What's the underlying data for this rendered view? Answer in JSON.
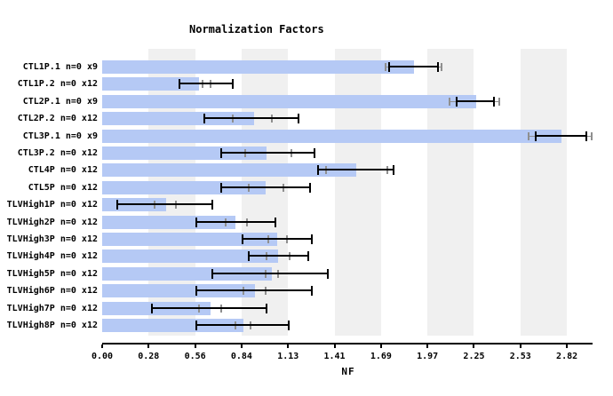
{
  "chart_data": {
    "type": "bar",
    "orientation": "horizontal",
    "title": "Normalization Factors",
    "xlabel": "NF",
    "xlim": [
      0,
      2.82
    ],
    "xtick_labels": [
      "0.00",
      "0.28",
      "0.56",
      "0.84",
      "1.13",
      "1.41",
      "1.69",
      "1.97",
      "2.25",
      "2.53",
      "2.82"
    ],
    "grid": "alternating vertical gray bands between every other tick",
    "legend": null,
    "bar_color": "#b5c9f5",
    "band_color": "#f0f0f0",
    "error_bar_color": "#000000",
    "secondary_whisker_color": "#8f8f8f",
    "rows": [
      {
        "label": "CTL1P.1 n=0 x9",
        "value": 1.89,
        "error_low": 1.74,
        "error_high": 2.04,
        "gray_low": 1.72,
        "gray_high": 2.06
      },
      {
        "label": "CTL1P.2 n=0 x12",
        "value": 0.59,
        "error_low": 0.47,
        "error_high": 0.79,
        "gray_low": 0.61,
        "gray_high": 0.66
      },
      {
        "label": "CTL2P.1 n=0 x9",
        "value": 2.27,
        "error_low": 2.15,
        "error_high": 2.38,
        "gray_low": 2.11,
        "gray_high": 2.41
      },
      {
        "label": "CTL2P.2 n=0 x12",
        "value": 0.92,
        "error_low": 0.62,
        "error_high": 1.19,
        "gray_low": 0.79,
        "gray_high": 1.03
      },
      {
        "label": "CTL3P.1 n=0 x9",
        "value": 2.79,
        "error_low": 2.63,
        "error_high": 2.94,
        "gray_low": 2.59,
        "gray_high": 2.97
      },
      {
        "label": "CTL3P.2 n=0 x12",
        "value": 1.0,
        "error_low": 0.72,
        "error_high": 1.29,
        "gray_low": 0.87,
        "gray_high": 1.15
      },
      {
        "label": "CTL4P n=0 x12",
        "value": 1.54,
        "error_low": 1.31,
        "error_high": 1.77,
        "gray_low": 1.36,
        "gray_high": 1.73
      },
      {
        "label": "CTL5P n=0 x12",
        "value": 0.99,
        "error_low": 0.72,
        "error_high": 1.26,
        "gray_low": 0.89,
        "gray_high": 1.1
      },
      {
        "label": "TLVHigh1P n=0 x12",
        "value": 0.39,
        "error_low": 0.09,
        "error_high": 0.67,
        "gray_low": 0.32,
        "gray_high": 0.45
      },
      {
        "label": "TLVHigh2P n=0 x12",
        "value": 0.81,
        "error_low": 0.57,
        "error_high": 1.05,
        "gray_low": 0.75,
        "gray_high": 0.88
      },
      {
        "label": "TLVHigh3P n=0 x12",
        "value": 1.06,
        "error_low": 0.85,
        "error_high": 1.27,
        "gray_low": 1.01,
        "gray_high": 1.12
      },
      {
        "label": "TLVHigh4P n=0 x12",
        "value": 1.07,
        "error_low": 0.89,
        "error_high": 1.25,
        "gray_low": 1.0,
        "gray_high": 1.14
      },
      {
        "label": "TLVHigh5P n=0 x12",
        "value": 1.03,
        "error_low": 0.67,
        "error_high": 1.37,
        "gray_low": 0.99,
        "gray_high": 1.07
      },
      {
        "label": "TLVHigh6P n=0 x12",
        "value": 0.93,
        "error_low": 0.57,
        "error_high": 1.27,
        "gray_low": 0.86,
        "gray_high": 0.99
      },
      {
        "label": "TLVHigh7P n=0 x12",
        "value": 0.66,
        "error_low": 0.3,
        "error_high": 1.0,
        "gray_low": 0.59,
        "gray_high": 0.72
      },
      {
        "label": "TLVHigh8P n=0 x12",
        "value": 0.86,
        "error_low": 0.57,
        "error_high": 1.13,
        "gray_low": 0.81,
        "gray_high": 0.9
      }
    ]
  }
}
